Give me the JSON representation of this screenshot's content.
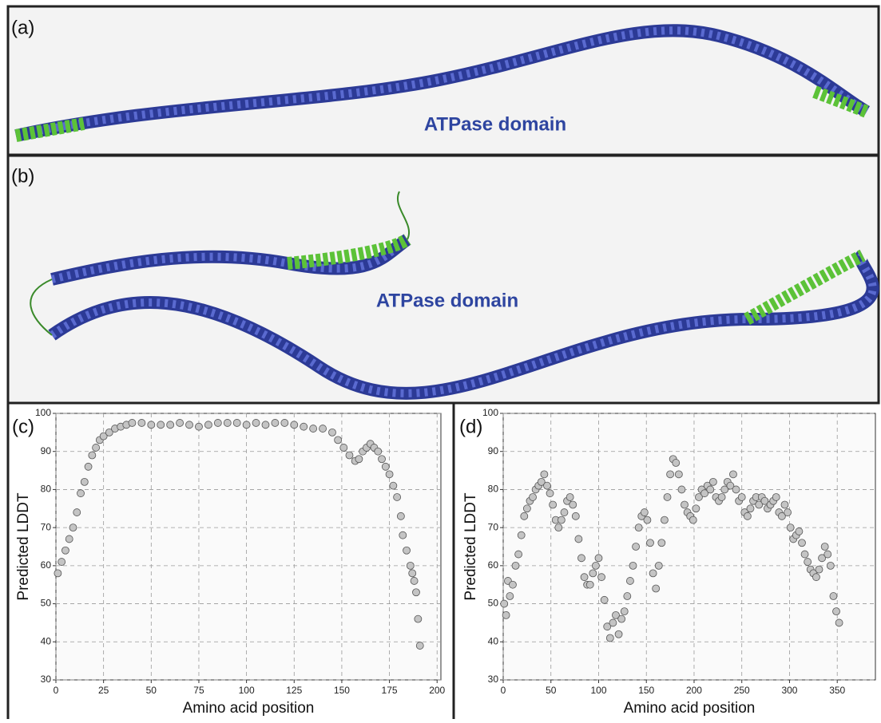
{
  "panels": [
    {
      "label": "(a)",
      "annotation": "ATPase domain"
    },
    {
      "label": "(b)",
      "annotation": "ATPase domain"
    }
  ],
  "chart_data": [
    {
      "type": "scatter",
      "panel_label": "(c)",
      "xlabel": "Amino acid position",
      "ylabel": "Predicted LDDT",
      "color": "#c4c4c4",
      "x": [
        1,
        3,
        5,
        7,
        9,
        11,
        13,
        15,
        17,
        19,
        21,
        23,
        25,
        28,
        31,
        34,
        37,
        40,
        45,
        50,
        55,
        60,
        65,
        70,
        75,
        80,
        85,
        90,
        95,
        100,
        105,
        110,
        115,
        120,
        125,
        130,
        135,
        140,
        145,
        148,
        151,
        154,
        157,
        159,
        161,
        163,
        165,
        167,
        169,
        171,
        173,
        175,
        177,
        179,
        181,
        182,
        184,
        186,
        187,
        188,
        189,
        190,
        191
      ],
      "values": [
        58,
        61,
        64,
        67,
        70,
        74,
        79,
        82,
        86,
        89,
        91,
        93,
        94,
        95,
        96,
        96.5,
        97,
        97.5,
        97.5,
        97,
        97,
        97,
        97.5,
        97,
        96.5,
        97,
        97.5,
        97.5,
        97.5,
        97,
        97.5,
        97,
        97.5,
        97.5,
        97,
        96.5,
        96,
        96,
        95,
        93,
        91,
        89,
        87.5,
        88,
        90,
        91,
        92,
        91,
        90,
        88,
        86,
        84,
        81,
        78,
        73,
        68,
        64,
        60,
        58,
        56,
        53,
        46,
        39
      ],
      "xlim": [
        0,
        202
      ],
      "ylim": [
        30,
        100
      ],
      "xticks": [
        0,
        25,
        50,
        75,
        100,
        125,
        150,
        175,
        200
      ],
      "yticks": [
        30,
        40,
        50,
        60,
        70,
        80,
        90,
        100
      ],
      "grid": true
    },
    {
      "type": "scatter",
      "panel_label": "(d)",
      "xlabel": "Amino acid position",
      "ylabel": "Predicted LDDT",
      "color": "#c4c4c4",
      "x": [
        1,
        3,
        5,
        7,
        10,
        13,
        16,
        19,
        22,
        25,
        28,
        31,
        34,
        37,
        40,
        43,
        46,
        49,
        52,
        55,
        58,
        61,
        64,
        67,
        70,
        73,
        76,
        79,
        82,
        85,
        88,
        91,
        94,
        97,
        100,
        103,
        106,
        109,
        112,
        115,
        118,
        121,
        124,
        127,
        130,
        133,
        136,
        139,
        142,
        145,
        148,
        151,
        154,
        157,
        160,
        163,
        166,
        169,
        172,
        175,
        178,
        181,
        184,
        187,
        190,
        193,
        196,
        199,
        202,
        205,
        208,
        211,
        214,
        217,
        220,
        223,
        226,
        229,
        232,
        235,
        238,
        241,
        244,
        247,
        250,
        253,
        256,
        259,
        262,
        265,
        268,
        271,
        274,
        277,
        280,
        283,
        286,
        289,
        292,
        295,
        298,
        301,
        304,
        307,
        310,
        313,
        316,
        319,
        322,
        325,
        328,
        331,
        334,
        337,
        340,
        343,
        346,
        349,
        352
      ],
      "values": [
        50,
        47,
        56,
        52,
        55,
        60,
        63,
        68,
        73,
        75,
        77,
        78,
        80,
        81,
        82,
        84,
        81,
        79,
        76,
        72,
        70,
        72,
        74,
        77,
        78,
        76,
        73,
        67,
        62,
        57,
        55,
        55,
        58,
        60,
        62,
        57,
        51,
        44,
        41,
        45,
        47,
        42,
        46,
        48,
        52,
        56,
        60,
        65,
        70,
        73,
        74,
        72,
        66,
        58,
        54,
        60,
        66,
        72,
        78,
        84,
        88,
        87,
        84,
        80,
        76,
        74,
        73,
        72,
        75,
        78,
        80,
        79,
        81,
        80,
        82,
        78,
        77,
        78,
        80,
        82,
        81,
        84,
        80,
        77,
        78,
        74,
        73,
        75,
        77,
        78,
        76,
        78,
        77,
        75,
        76,
        77,
        78,
        74,
        73,
        76,
        74,
        70,
        67,
        68,
        69,
        66,
        63,
        61,
        59,
        58,
        57,
        59,
        62,
        65,
        63,
        60,
        52,
        48,
        45
      ],
      "xlim": [
        0,
        390
      ],
      "ylim": [
        30,
        100
      ],
      "xticks": [
        0,
        50,
        100,
        150,
        200,
        250,
        300,
        350
      ],
      "yticks": [
        30,
        40,
        50,
        60,
        70,
        80,
        90,
        100
      ],
      "grid": true
    }
  ]
}
